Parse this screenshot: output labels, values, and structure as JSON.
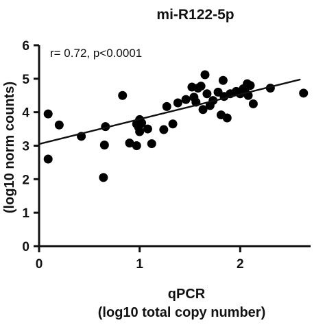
{
  "chart_data": {
    "type": "scatter",
    "title": "mi-R122-5p",
    "annotation": "r= 0.72, p<0.0001",
    "xlabel_line1": "qPCR",
    "xlabel_line2": "(log10 total copy number)",
    "ylabel": "(log10 norm counts)",
    "xlim": [
      0,
      2.7
    ],
    "ylim": [
      0,
      6
    ],
    "xticks": [
      0,
      1,
      2
    ],
    "yticks": [
      0,
      1,
      2,
      3,
      4,
      5,
      6
    ],
    "grid": false,
    "trendline": {
      "x": [
        0,
        2.6
      ],
      "y": [
        3.05,
        4.98
      ]
    },
    "points": [
      {
        "x": 0.09,
        "y": 3.95
      },
      {
        "x": 0.09,
        "y": 2.6
      },
      {
        "x": 0.2,
        "y": 3.62
      },
      {
        "x": 0.42,
        "y": 3.28
      },
      {
        "x": 0.64,
        "y": 2.05
      },
      {
        "x": 0.65,
        "y": 3.02
      },
      {
        "x": 0.66,
        "y": 3.57
      },
      {
        "x": 0.83,
        "y": 4.5
      },
      {
        "x": 0.9,
        "y": 3.08
      },
      {
        "x": 0.97,
        "y": 3.0
      },
      {
        "x": 0.97,
        "y": 3.65
      },
      {
        "x": 0.99,
        "y": 3.55
      },
      {
        "x": 1.0,
        "y": 3.78
      },
      {
        "x": 1.0,
        "y": 3.42
      },
      {
        "x": 1.02,
        "y": 3.68
      },
      {
        "x": 1.08,
        "y": 3.5
      },
      {
        "x": 1.12,
        "y": 3.06
      },
      {
        "x": 1.24,
        "y": 3.48
      },
      {
        "x": 1.27,
        "y": 4.17
      },
      {
        "x": 1.33,
        "y": 3.65
      },
      {
        "x": 1.38,
        "y": 4.28
      },
      {
        "x": 1.46,
        "y": 4.38
      },
      {
        "x": 1.52,
        "y": 4.75
      },
      {
        "x": 1.54,
        "y": 4.45
      },
      {
        "x": 1.56,
        "y": 4.3
      },
      {
        "x": 1.58,
        "y": 4.72
      },
      {
        "x": 1.61,
        "y": 4.78
      },
      {
        "x": 1.63,
        "y": 4.08
      },
      {
        "x": 1.65,
        "y": 5.12
      },
      {
        "x": 1.67,
        "y": 4.55
      },
      {
        "x": 1.7,
        "y": 4.2
      },
      {
        "x": 1.73,
        "y": 4.35
      },
      {
        "x": 1.78,
        "y": 4.6
      },
      {
        "x": 1.81,
        "y": 3.92
      },
      {
        "x": 1.83,
        "y": 4.95
      },
      {
        "x": 1.84,
        "y": 4.47
      },
      {
        "x": 1.87,
        "y": 3.83
      },
      {
        "x": 1.9,
        "y": 4.55
      },
      {
        "x": 1.96,
        "y": 4.62
      },
      {
        "x": 2.0,
        "y": 4.55
      },
      {
        "x": 2.03,
        "y": 4.7
      },
      {
        "x": 2.05,
        "y": 4.6
      },
      {
        "x": 2.07,
        "y": 4.85
      },
      {
        "x": 2.08,
        "y": 4.5
      },
      {
        "x": 2.1,
        "y": 4.8
      },
      {
        "x": 2.13,
        "y": 4.25
      },
      {
        "x": 2.3,
        "y": 4.72
      },
      {
        "x": 2.63,
        "y": 4.57
      }
    ]
  }
}
